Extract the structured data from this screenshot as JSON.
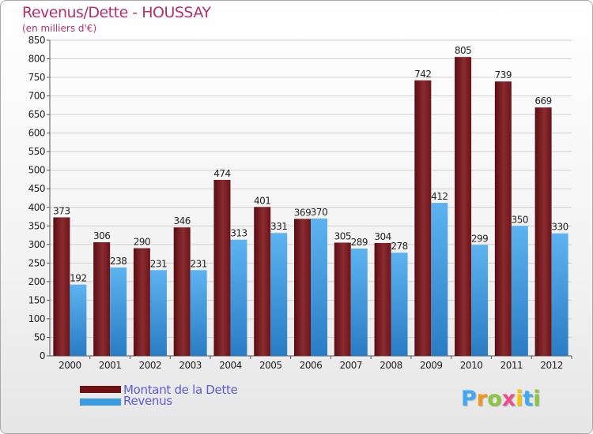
{
  "title": "Revenus/Dette - HOUSSAY",
  "subtitle": "(en milliers d'€)",
  "chart_data": {
    "type": "bar",
    "categories": [
      "2000",
      "2001",
      "2002",
      "2003",
      "2004",
      "2005",
      "2006",
      "2007",
      "2008",
      "2009",
      "2010",
      "2011",
      "2012"
    ],
    "series": [
      {
        "name": "Montant de la Dette",
        "color": "#7a1e22",
        "values": [
          373,
          306,
          290,
          346,
          474,
          401,
          369,
          305,
          304,
          742,
          805,
          739,
          669
        ]
      },
      {
        "name": "Revenus",
        "color": "#3b9be0",
        "values": [
          192,
          238,
          231,
          231,
          313,
          331,
          370,
          289,
          278,
          412,
          299,
          350,
          330
        ]
      }
    ],
    "ylim": [
      0,
      850
    ],
    "ytick_step": 50,
    "grid": true,
    "legend": "bottom-left",
    "xlabel": "",
    "ylabel": ""
  },
  "legend": {
    "items": [
      {
        "label": "Montant de la Dette",
        "color": "#6e1015"
      },
      {
        "label": "Revenus",
        "color": "#3b9be0"
      }
    ]
  },
  "logo": {
    "text": "Proxiti",
    "colors": [
      "#3fa9f5",
      "#f7931e",
      "#8cc63f",
      "#e94e8a",
      "#f7c400",
      "#3fa9f5",
      "#8cc63f"
    ]
  }
}
